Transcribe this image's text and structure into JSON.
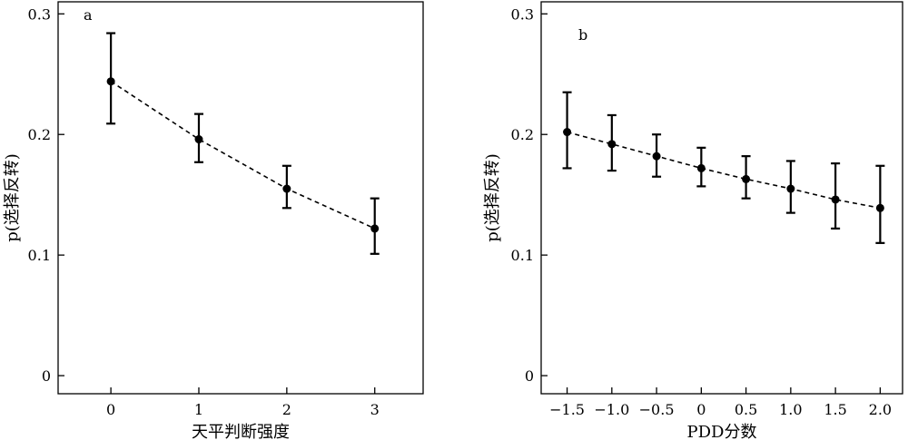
{
  "chart_data": [
    {
      "type": "scatter",
      "panel_label": "a",
      "xlabel": "天平判断强度",
      "ylabel": "p(选择反转)",
      "x_ticks": [
        "0",
        "1",
        "2",
        "3"
      ],
      "y_ticks": [
        "0",
        "0.1",
        "0.2",
        "0.3"
      ],
      "xlim": [
        -0.6,
        3.55
      ],
      "ylim": [
        -0.015,
        0.31
      ],
      "series": [
        {
          "x": [
            0,
            1,
            2,
            3
          ],
          "y": [
            0.244,
            0.196,
            0.155,
            0.122
          ],
          "err_low": [
            0.209,
            0.177,
            0.139,
            0.101
          ],
          "err_high": [
            0.284,
            0.217,
            0.174,
            0.147
          ]
        }
      ],
      "fit_line": "dashed",
      "grid": false
    },
    {
      "type": "scatter",
      "panel_label": "b",
      "xlabel": "PDD分数",
      "ylabel": "p(选择反转)",
      "x_ticks": [
        "−1.5",
        "−1.0",
        "−0.5",
        "0",
        "0.5",
        "1.0",
        "1.5",
        "2.0"
      ],
      "y_ticks": [
        "0",
        "0.1",
        "0.2",
        "0.3"
      ],
      "xlim": [
        -1.79,
        2.25
      ],
      "ylim": [
        -0.015,
        0.31
      ],
      "series": [
        {
          "x": [
            -1.5,
            -1.0,
            -0.5,
            0,
            0.5,
            1.0,
            1.5,
            2.0
          ],
          "y": [
            0.202,
            0.192,
            0.182,
            0.172,
            0.163,
            0.155,
            0.146,
            0.139
          ],
          "err_low": [
            0.172,
            0.17,
            0.165,
            0.157,
            0.147,
            0.135,
            0.122,
            0.11
          ],
          "err_high": [
            0.235,
            0.216,
            0.2,
            0.189,
            0.182,
            0.178,
            0.176,
            0.174
          ]
        }
      ],
      "fit_line": "dashed",
      "grid": false
    }
  ]
}
